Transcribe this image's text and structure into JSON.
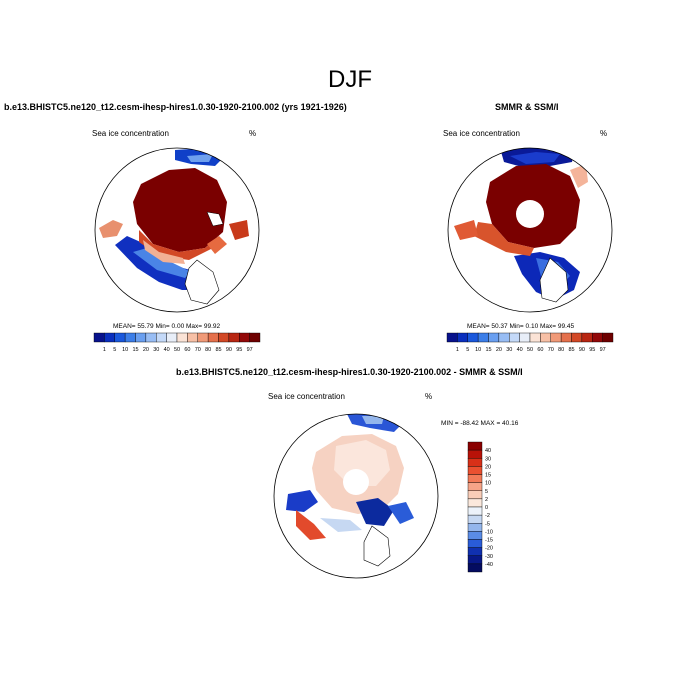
{
  "figure_title": "DJF",
  "panels": [
    {
      "title": "b.e13.BHISTC5.ne120_t12.cesm-ihesp-hires1.0.30-1920-2100.002 (yrs 1921-1926)",
      "variable": "Sea ice concentration",
      "units": "%",
      "stats": "MEAN=  55.79  Min=   0.00  Max=  99.92",
      "colorbar_ticks": [
        "1",
        "5",
        "10",
        "15",
        "20",
        "30",
        "40",
        "50",
        "60",
        "70",
        "80",
        "85",
        "90",
        "95",
        "97"
      ]
    },
    {
      "title": "SMMR & SSM/I",
      "variable": "Sea ice concentration",
      "units": "%",
      "stats": "MEAN=  50.37  Min=   0.10  Max=  99.45",
      "colorbar_ticks": [
        "1",
        "5",
        "10",
        "15",
        "20",
        "30",
        "40",
        "50",
        "60",
        "70",
        "80",
        "85",
        "90",
        "95",
        "97"
      ]
    },
    {
      "title": "b.e13.BHISTC5.ne120_t12.cesm-ihesp-hires1.0.30-1920-2100.002 - SMMR & SSM/I",
      "variable": "Sea ice concentration",
      "units": "%",
      "stats": "MIN = -88.42 MAX =  40.16",
      "colorbar_ticks": [
        "40",
        "30",
        "20",
        "15",
        "10",
        "5",
        "2",
        "0",
        "-2",
        "-5",
        "-10",
        "-15",
        "-20",
        "-30",
        "-40"
      ]
    }
  ],
  "chart_data": [
    {
      "type": "heatmap",
      "projection": "north-polar-stereographic",
      "title": "b.e13.BHISTC5.ne120_t12.cesm-ihesp-hires1.0.30-1920-2100.002 (yrs 1921-1926)",
      "variable": "Sea ice concentration",
      "units": "%",
      "mean": 55.79,
      "min": 0.0,
      "max": 99.92,
      "colorbar_levels": [
        1,
        5,
        10,
        15,
        20,
        30,
        40,
        50,
        60,
        70,
        80,
        85,
        90,
        95,
        97
      ],
      "colorbar_colors": [
        "#08128c",
        "#0a2fbe",
        "#1a58dc",
        "#3c7ee8",
        "#6a9ff0",
        "#98bdf4",
        "#c4d9f8",
        "#e8eef8",
        "#fbe3d6",
        "#f7c0a6",
        "#f09a78",
        "#e4704c",
        "#d24826",
        "#b82612",
        "#920808",
        "#6e0000"
      ]
    },
    {
      "type": "heatmap",
      "projection": "north-polar-stereographic",
      "title": "SMMR & SSM/I",
      "variable": "Sea ice concentration",
      "units": "%",
      "mean": 50.37,
      "min": 0.1,
      "max": 99.45,
      "colorbar_levels": [
        1,
        5,
        10,
        15,
        20,
        30,
        40,
        50,
        60,
        70,
        80,
        85,
        90,
        95,
        97
      ],
      "colorbar_colors": [
        "#08128c",
        "#0a2fbe",
        "#1a58dc",
        "#3c7ee8",
        "#6a9ff0",
        "#98bdf4",
        "#c4d9f8",
        "#e8eef8",
        "#fbe3d6",
        "#f7c0a6",
        "#f09a78",
        "#e4704c",
        "#d24826",
        "#b82612",
        "#920808",
        "#6e0000"
      ]
    },
    {
      "type": "heatmap",
      "projection": "north-polar-stereographic",
      "title": "b.e13.BHISTC5.ne120_t12.cesm-ihesp-hires1.0.30-1920-2100.002 - SMMR & SSM/I",
      "variable": "Sea ice concentration",
      "units": "%",
      "min": -88.42,
      "max": 40.16,
      "colorbar_levels": [
        40,
        30,
        20,
        15,
        10,
        5,
        2,
        0,
        -2,
        -5,
        -10,
        -15,
        -20,
        -30,
        -40
      ],
      "colorbar_colors": [
        "#8a0000",
        "#b81208",
        "#d83018",
        "#ea5030",
        "#f27a58",
        "#f6a488",
        "#f9cdb8",
        "#fbe8dc",
        "#ecf2fa",
        "#c6d8f2",
        "#94b6ec",
        "#5a8ce6",
        "#2a5cd8",
        "#1030b0",
        "#081888",
        "#040c60"
      ]
    }
  ]
}
